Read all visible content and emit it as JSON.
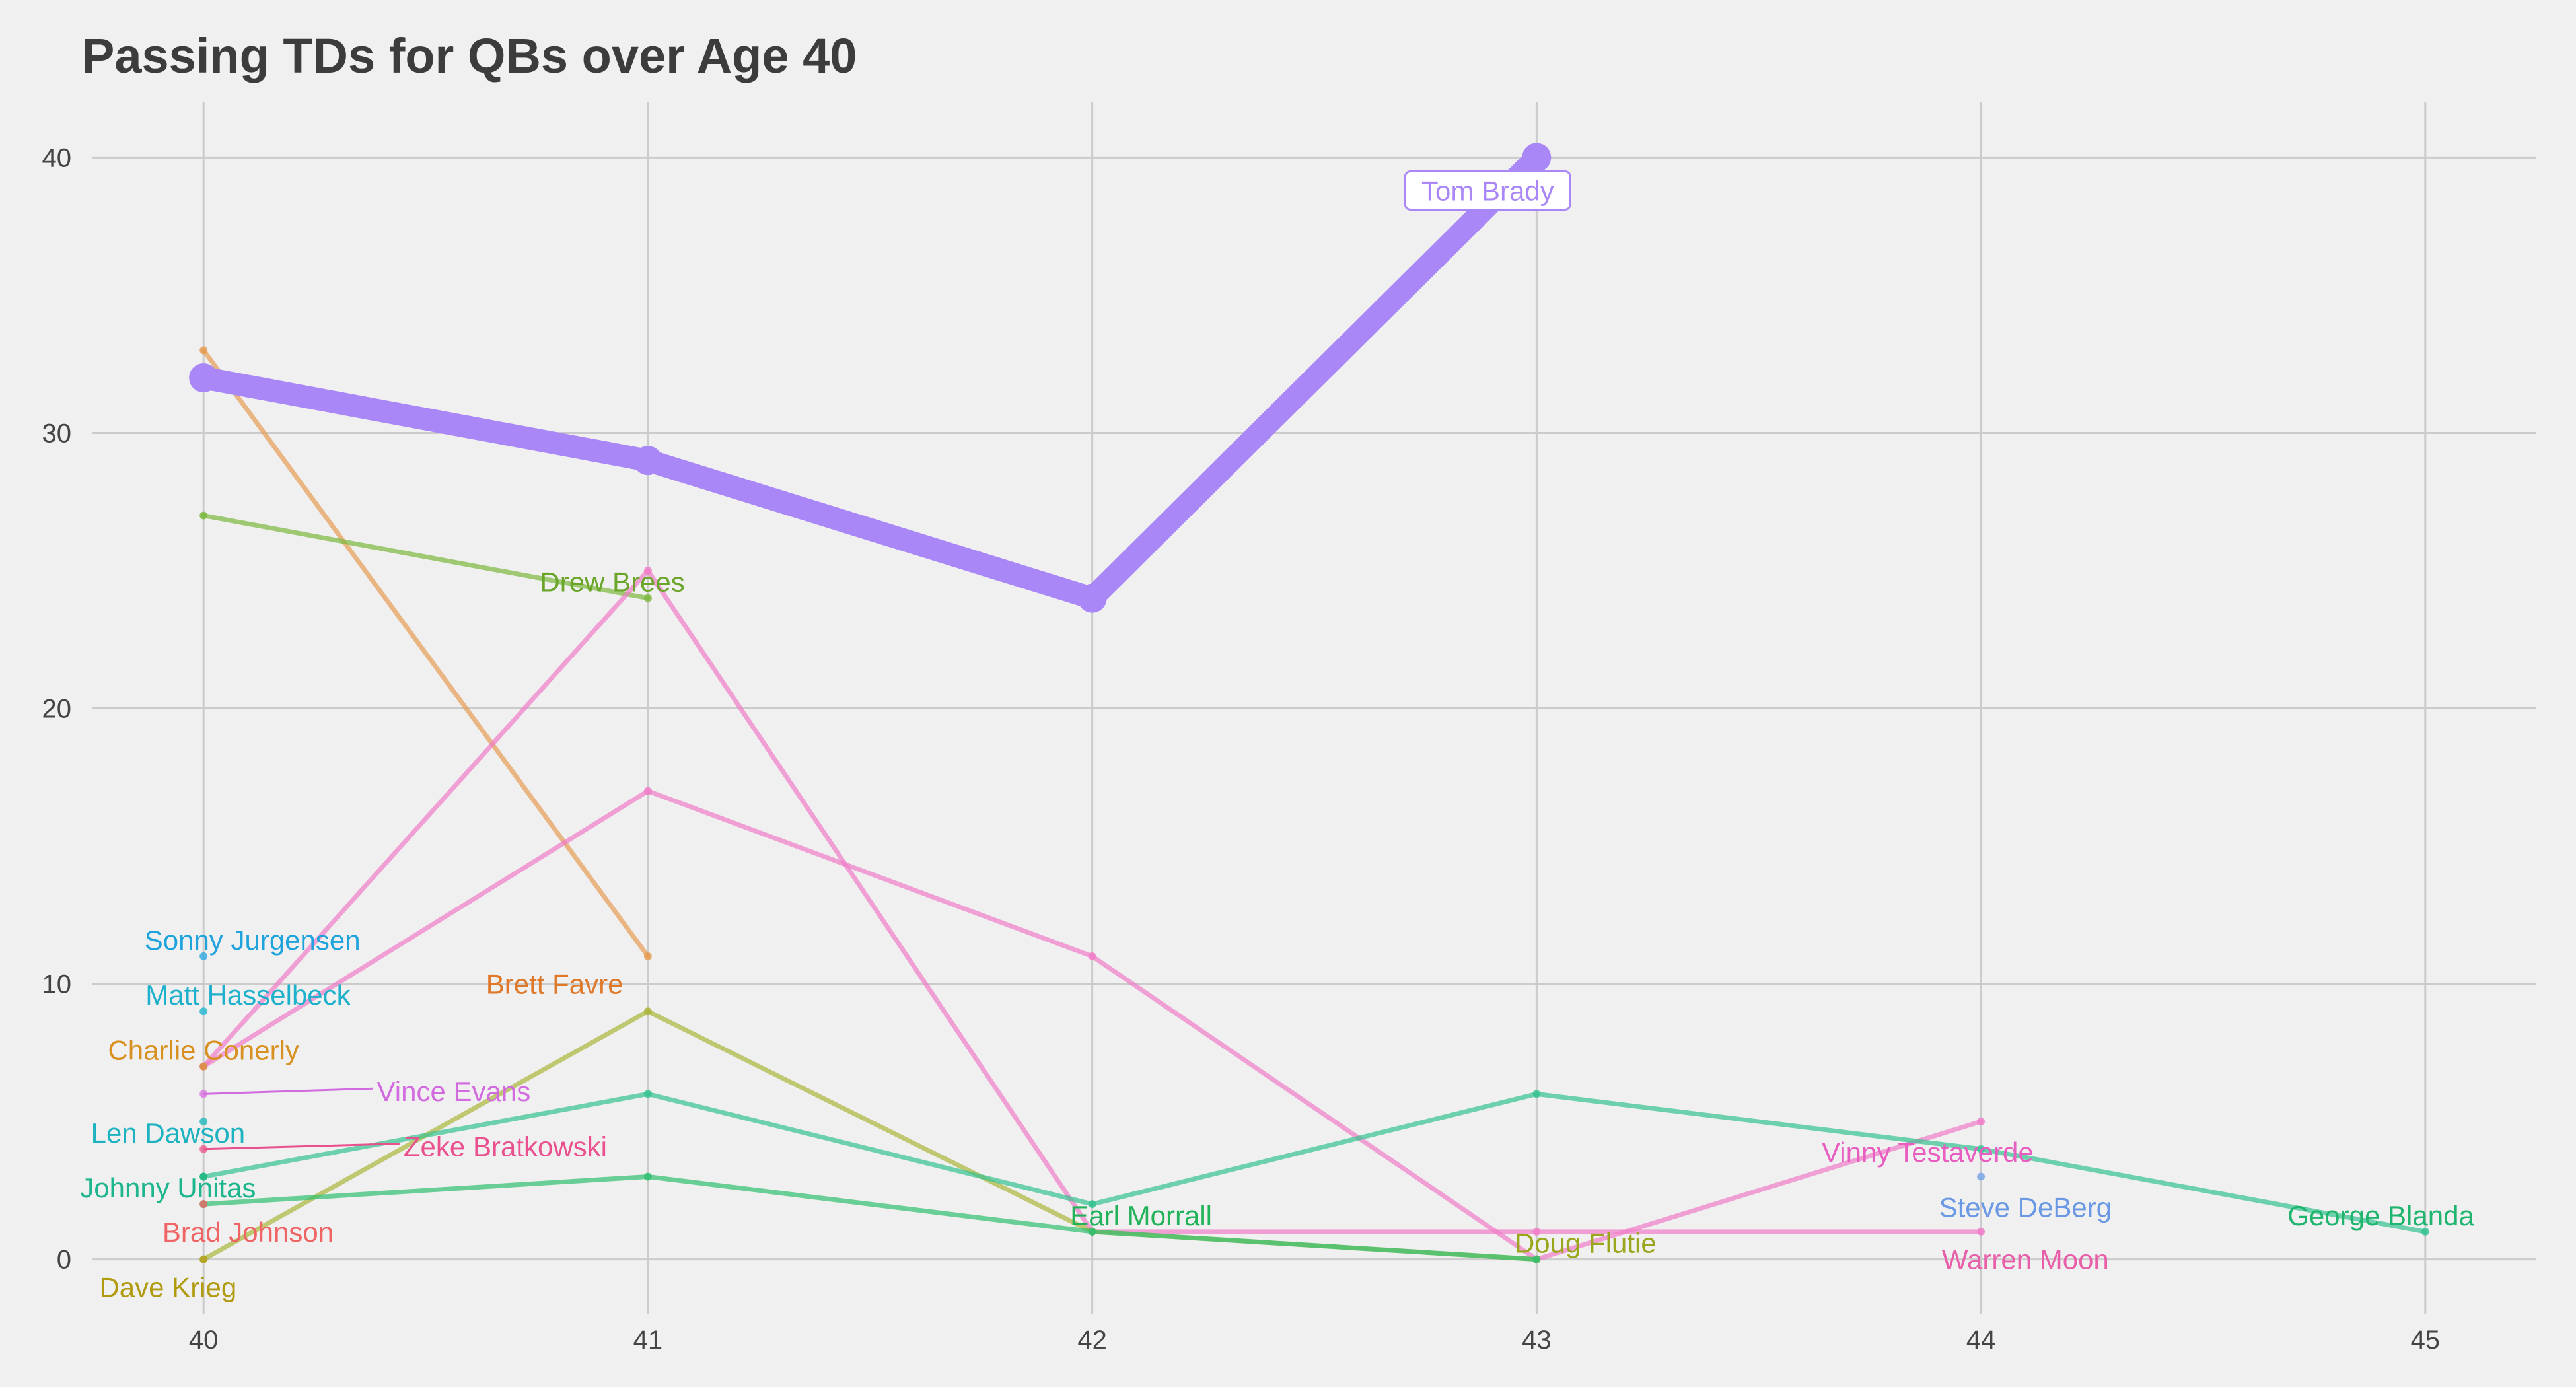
{
  "chart_data": {
    "type": "line",
    "title": "Passing TDs for QBs over Age 40",
    "xlabel": "",
    "ylabel": "",
    "xlim": [
      39.75,
      45.25
    ],
    "ylim": [
      -2,
      42
    ],
    "x_ticks": [
      40,
      41,
      42,
      43,
      44,
      45
    ],
    "y_ticks": [
      0,
      10,
      20,
      30,
      40
    ],
    "grid": true,
    "legend": "none",
    "highlight": "Tom Brady",
    "series": [
      {
        "name": "Tom Brady",
        "color": "#a987f7",
        "points": [
          [
            40,
            32
          ],
          [
            41,
            29
          ],
          [
            42,
            24
          ],
          [
            43,
            40
          ]
        ]
      },
      {
        "name": "Brett Favre",
        "color": "#e69b52",
        "points": [
          [
            40,
            33
          ],
          [
            41,
            11
          ]
        ]
      },
      {
        "name": "Drew Brees",
        "color": "#7ab83c",
        "points": [
          [
            40,
            27
          ],
          [
            41,
            24
          ]
        ]
      },
      {
        "name": "Vinny Testaverde",
        "color": "#f07cc8",
        "points": [
          [
            40,
            7
          ],
          [
            41,
            17
          ],
          [
            42,
            11
          ],
          [
            43,
            0
          ],
          [
            44,
            5
          ]
        ]
      },
      {
        "name": "Warren Moon",
        "color": "#f07cc8",
        "points": [
          [
            40,
            7
          ],
          [
            41,
            25
          ],
          [
            42,
            1
          ],
          [
            43,
            1
          ],
          [
            44,
            1
          ]
        ]
      },
      {
        "name": "Doug Flutie",
        "color": "#aab53a",
        "points": [
          [
            40,
            0
          ],
          [
            41,
            9
          ],
          [
            42,
            1
          ],
          [
            43,
            0
          ]
        ]
      },
      {
        "name": "Earl Morrall",
        "color": "#2fbf6f",
        "points": [
          [
            40,
            2
          ],
          [
            41,
            3
          ],
          [
            42,
            1
          ],
          [
            43,
            0
          ]
        ]
      },
      {
        "name": "George Blanda",
        "color": "#35c28f",
        "points": [
          [
            40,
            3
          ],
          [
            41,
            6
          ],
          [
            42,
            2
          ],
          [
            43,
            6
          ],
          [
            44,
            4
          ],
          [
            45,
            1
          ]
        ]
      },
      {
        "name": "Steve DeBerg",
        "color": "#73a2e8",
        "points": [
          [
            44,
            3
          ]
        ]
      },
      {
        "name": "Sonny Jurgensen",
        "color": "#2ca7e0",
        "points": [
          [
            40,
            11
          ]
        ]
      },
      {
        "name": "Matt Hasselbeck",
        "color": "#21b5d0",
        "points": [
          [
            40,
            9
          ]
        ]
      },
      {
        "name": "Charlie Conerly",
        "color": "#d8912e",
        "points": [
          [
            40,
            7
          ]
        ]
      },
      {
        "name": "Vince Evans",
        "color": "#d877e0",
        "points": [
          [
            40,
            6
          ]
        ]
      },
      {
        "name": "Len Dawson",
        "color": "#1fb8b8",
        "points": [
          [
            40,
            5
          ]
        ]
      },
      {
        "name": "Zeke Bratkowski",
        "color": "#ee5c8e",
        "points": [
          [
            40,
            4
          ]
        ]
      },
      {
        "name": "Johnny Unitas",
        "color": "#20b886",
        "points": [
          [
            40,
            3
          ]
        ]
      },
      {
        "name": "Brad Johnson",
        "color": "#f06868",
        "points": [
          [
            40,
            2
          ]
        ]
      },
      {
        "name": "Dave Krieg",
        "color": "#b4a020",
        "points": [
          [
            40,
            0
          ]
        ]
      }
    ],
    "labels": [
      {
        "text": "Tom Brady",
        "color": "#a987f7",
        "x": 42.89,
        "y": 38.8,
        "boxed": true
      },
      {
        "text": "Drew Brees",
        "color": "#6aa52a",
        "x": 40.92,
        "y": 24.6
      },
      {
        "text": "Brett Favre",
        "color": "#e0782a",
        "x": 40.79,
        "y": 10.0
      },
      {
        "text": "Sonny Jurgensen",
        "color": "#1fa3dd",
        "x": 40.11,
        "y": 11.6
      },
      {
        "text": "Matt Hasselbeck",
        "color": "#1fb0cc",
        "x": 40.1,
        "y": 9.6
      },
      {
        "text": "Charlie Conerly",
        "color": "#d89020",
        "x": 40.0,
        "y": 7.6
      },
      {
        "text": "Vince Evans",
        "color": "#d36be0",
        "x": 40.39,
        "y": 6.1,
        "from": [
          40,
          6
        ]
      },
      {
        "text": "Len Dawson",
        "color": "#1cb2c0",
        "x": 39.92,
        "y": 4.6
      },
      {
        "text": "Zeke Bratkowski",
        "color": "#ea4f8e",
        "x": 40.45,
        "y": 4.1,
        "from": [
          40,
          4
        ]
      },
      {
        "text": "Johnny Unitas",
        "color": "#1db58d",
        "x": 39.92,
        "y": 2.6
      },
      {
        "text": "Brad Johnson",
        "color": "#ef6464",
        "x": 40.1,
        "y": 1.0
      },
      {
        "text": "Dave Krieg",
        "color": "#b09a10",
        "x": 39.92,
        "y": -1.0
      },
      {
        "text": "Earl Morrall",
        "color": "#22b35a",
        "x": 42.11,
        "y": 1.6
      },
      {
        "text": "Doug Flutie",
        "color": "#9aa71c",
        "x": 43.11,
        "y": 0.6
      },
      {
        "text": "Vinny Testaverde",
        "color": "#e85ec0",
        "x": 43.88,
        "y": 3.9
      },
      {
        "text": "Steve DeBerg",
        "color": "#6a98e4",
        "x": 44.1,
        "y": 1.9
      },
      {
        "text": "Warren Moon",
        "color": "#e85ea8",
        "x": 44.1,
        "y": 0.0
      },
      {
        "text": "George Blanda",
        "color": "#1fb56e",
        "x": 44.9,
        "y": 1.6
      }
    ]
  }
}
